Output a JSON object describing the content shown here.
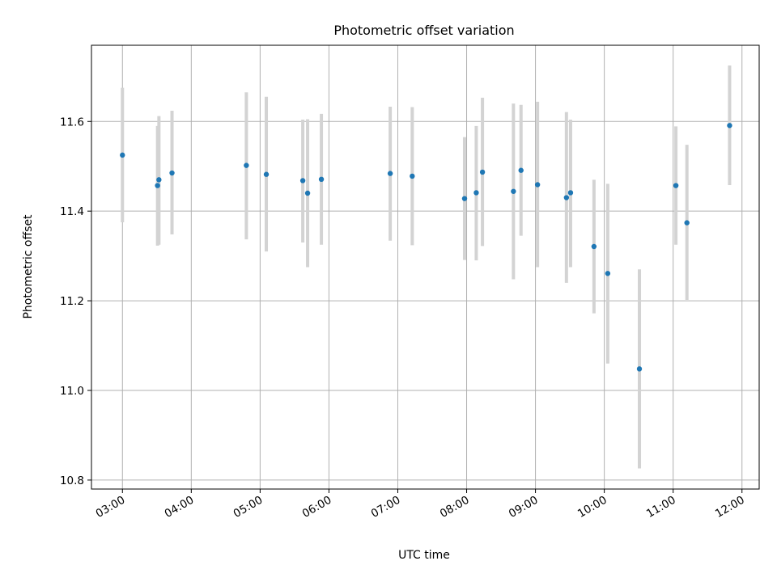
{
  "chart_data": {
    "type": "scatter",
    "title": "Photometric offset variation",
    "xlabel": "UTC time",
    "ylabel": "Photometric offset",
    "x_unit": "hours UTC",
    "xlim": [
      2.55,
      12.25
    ],
    "ylim": [
      10.78,
      11.77
    ],
    "x_ticks": [
      {
        "value": 3,
        "label": "03:00"
      },
      {
        "value": 4,
        "label": "04:00"
      },
      {
        "value": 5,
        "label": "05:00"
      },
      {
        "value": 6,
        "label": "06:00"
      },
      {
        "value": 7,
        "label": "07:00"
      },
      {
        "value": 8,
        "label": "08:00"
      },
      {
        "value": 9,
        "label": "09:00"
      },
      {
        "value": 10,
        "label": "10:00"
      },
      {
        "value": 11,
        "label": "11:00"
      },
      {
        "value": 12,
        "label": "12:00"
      }
    ],
    "y_ticks": [
      {
        "value": 10.8,
        "label": "10.8"
      },
      {
        "value": 11.0,
        "label": "11.0"
      },
      {
        "value": 11.2,
        "label": "11.2"
      },
      {
        "value": 11.4,
        "label": "11.4"
      },
      {
        "value": 11.6,
        "label": "11.6"
      }
    ],
    "grid": true,
    "colors": {
      "points": "#1f77b4",
      "errorbars": "#d3d3d3",
      "grid": "#b0b0b0"
    },
    "points": [
      {
        "x": 3.0,
        "y": 11.525,
        "ylo": 11.375,
        "yhi": 11.675
      },
      {
        "x": 3.51,
        "y": 11.457,
        "ylo": 11.323,
        "yhi": 11.59
      },
      {
        "x": 3.53,
        "y": 11.47,
        "ylo": 11.325,
        "yhi": 11.612
      },
      {
        "x": 3.72,
        "y": 11.485,
        "ylo": 11.348,
        "yhi": 11.624
      },
      {
        "x": 4.8,
        "y": 11.502,
        "ylo": 11.337,
        "yhi": 11.665
      },
      {
        "x": 5.09,
        "y": 11.482,
        "ylo": 11.31,
        "yhi": 11.655
      },
      {
        "x": 5.62,
        "y": 11.468,
        "ylo": 11.33,
        "yhi": 11.604
      },
      {
        "x": 5.69,
        "y": 11.44,
        "ylo": 11.275,
        "yhi": 11.605
      },
      {
        "x": 5.89,
        "y": 11.471,
        "ylo": 11.325,
        "yhi": 11.617
      },
      {
        "x": 6.89,
        "y": 11.484,
        "ylo": 11.334,
        "yhi": 11.633
      },
      {
        "x": 7.21,
        "y": 11.478,
        "ylo": 11.324,
        "yhi": 11.632
      },
      {
        "x": 7.97,
        "y": 11.428,
        "ylo": 11.291,
        "yhi": 11.565
      },
      {
        "x": 8.14,
        "y": 11.441,
        "ylo": 11.29,
        "yhi": 11.59
      },
      {
        "x": 8.23,
        "y": 11.487,
        "ylo": 11.322,
        "yhi": 11.653
      },
      {
        "x": 8.68,
        "y": 11.444,
        "ylo": 11.248,
        "yhi": 11.64
      },
      {
        "x": 8.79,
        "y": 11.491,
        "ylo": 11.345,
        "yhi": 11.637
      },
      {
        "x": 9.03,
        "y": 11.459,
        "ylo": 11.275,
        "yhi": 11.644
      },
      {
        "x": 9.45,
        "y": 11.43,
        "ylo": 11.24,
        "yhi": 11.621
      },
      {
        "x": 9.51,
        "y": 11.441,
        "ylo": 11.275,
        "yhi": 11.604
      },
      {
        "x": 9.85,
        "y": 11.321,
        "ylo": 11.172,
        "yhi": 11.47
      },
      {
        "x": 10.05,
        "y": 11.261,
        "ylo": 11.06,
        "yhi": 11.461
      },
      {
        "x": 10.51,
        "y": 11.048,
        "ylo": 10.826,
        "yhi": 11.27
      },
      {
        "x": 11.04,
        "y": 11.457,
        "ylo": 11.325,
        "yhi": 11.589
      },
      {
        "x": 11.2,
        "y": 11.374,
        "ylo": 11.202,
        "yhi": 11.548
      },
      {
        "x": 11.82,
        "y": 11.591,
        "ylo": 11.458,
        "yhi": 11.725
      }
    ]
  }
}
